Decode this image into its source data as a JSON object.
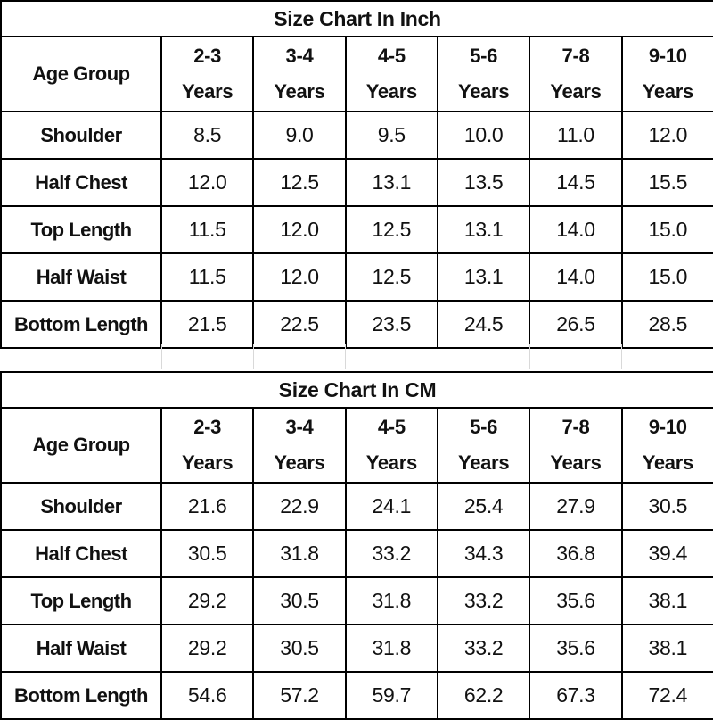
{
  "tables": [
    {
      "title": "Size Chart In Inch",
      "header_label": "Age Group",
      "age_groups": [
        {
          "range": "2-3",
          "unit": "Years"
        },
        {
          "range": "3-4",
          "unit": "Years"
        },
        {
          "range": "4-5",
          "unit": "Years"
        },
        {
          "range": "5-6",
          "unit": "Years"
        },
        {
          "range": "7-8",
          "unit": "Years"
        },
        {
          "range": "9-10",
          "unit": "Years"
        }
      ],
      "rows": [
        {
          "label": "Shoulder",
          "values": [
            "8.5",
            "9.0",
            "9.5",
            "10.0",
            "11.0",
            "12.0"
          ]
        },
        {
          "label": "Half Chest",
          "values": [
            "12.0",
            "12.5",
            "13.1",
            "13.5",
            "14.5",
            "15.5"
          ]
        },
        {
          "label": "Top Length",
          "values": [
            "11.5",
            "12.0",
            "12.5",
            "13.1",
            "14.0",
            "15.0"
          ]
        },
        {
          "label": "Half Waist",
          "values": [
            "11.5",
            "12.0",
            "12.5",
            "13.1",
            "14.0",
            "15.0"
          ]
        },
        {
          "label": "Bottom Length",
          "values": [
            "21.5",
            "22.5",
            "23.5",
            "24.5",
            "26.5",
            "28.5"
          ]
        }
      ]
    },
    {
      "title": "Size Chart In CM",
      "header_label": "Age Group",
      "age_groups": [
        {
          "range": "2-3",
          "unit": "Years"
        },
        {
          "range": "3-4",
          "unit": "Years"
        },
        {
          "range": "4-5",
          "unit": "Years"
        },
        {
          "range": "5-6",
          "unit": "Years"
        },
        {
          "range": "7-8",
          "unit": "Years"
        },
        {
          "range": "9-10",
          "unit": "Years"
        }
      ],
      "rows": [
        {
          "label": "Shoulder",
          "values": [
            "21.6",
            "22.9",
            "24.1",
            "25.4",
            "27.9",
            "30.5"
          ]
        },
        {
          "label": "Half Chest",
          "values": [
            "30.5",
            "31.8",
            "33.2",
            "34.3",
            "36.8",
            "39.4"
          ]
        },
        {
          "label": "Top Length",
          "values": [
            "29.2",
            "30.5",
            "31.8",
            "33.2",
            "35.6",
            "38.1"
          ]
        },
        {
          "label": "Half Waist",
          "values": [
            "29.2",
            "30.5",
            "31.8",
            "33.2",
            "35.6",
            "38.1"
          ]
        },
        {
          "label": "Bottom Length",
          "values": [
            "54.6",
            "57.2",
            "59.7",
            "62.2",
            "67.3",
            "72.4"
          ]
        }
      ]
    }
  ]
}
